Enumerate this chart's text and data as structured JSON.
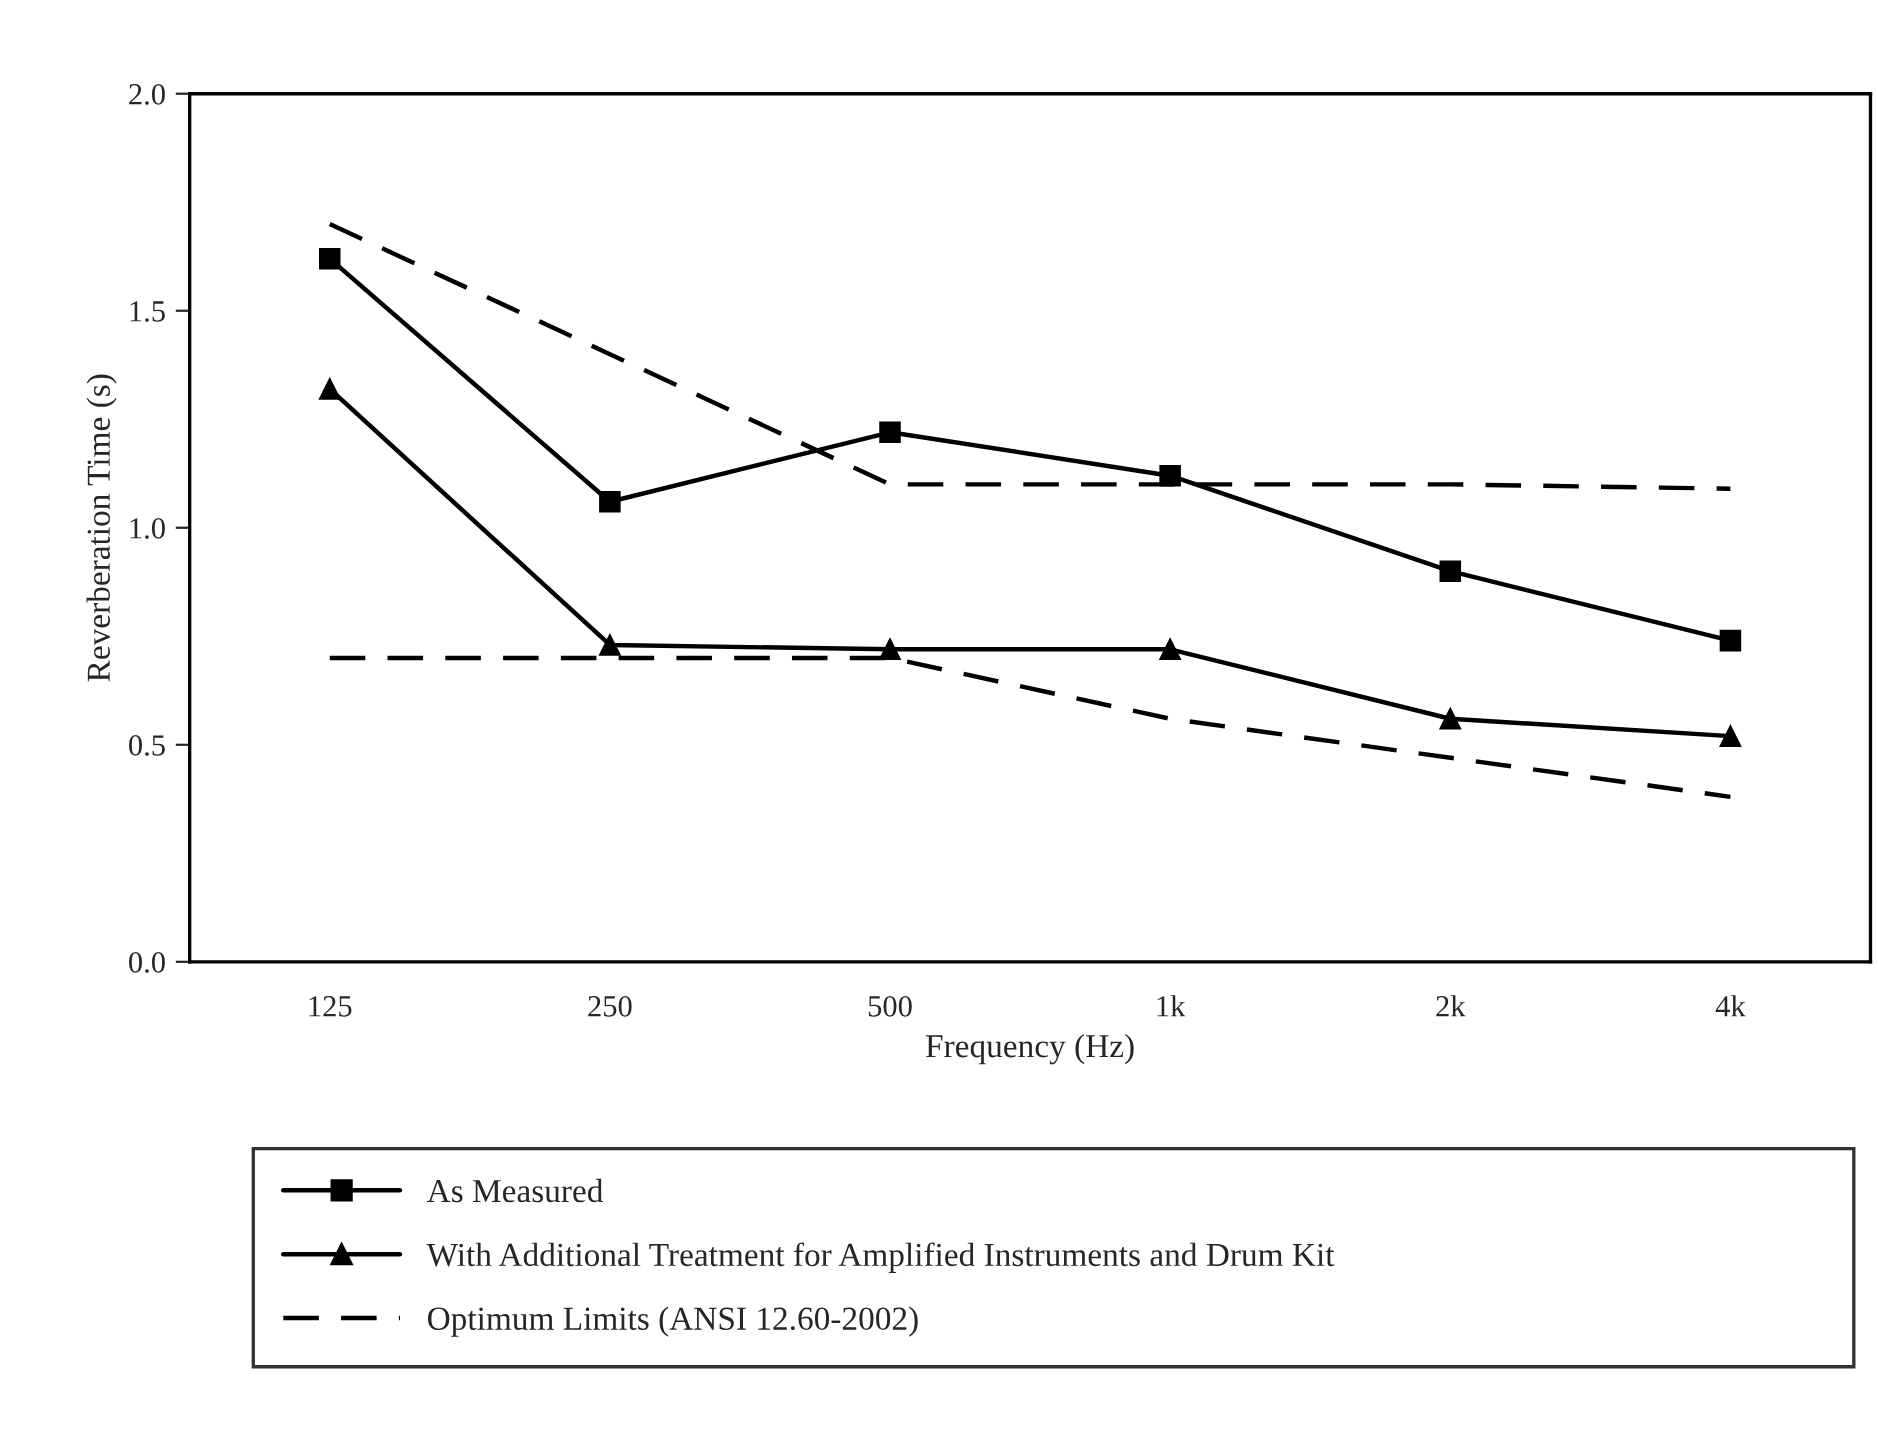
{
  "chart_data": {
    "type": "line",
    "xlabel": "Frequency (Hz)",
    "ylabel": "Reverberation Time (s)",
    "categories": [
      "125",
      "250",
      "500",
      "1k",
      "2k",
      "4k"
    ],
    "ylim": [
      0,
      2.0
    ],
    "yticks": [
      {
        "value": 0,
        "label": "0.0"
      },
      {
        "value": 0.5,
        "label": "0.5"
      },
      {
        "value": 1.0,
        "label": "1.0"
      },
      {
        "value": 1.5,
        "label": "1.5"
      },
      {
        "value": 2.0,
        "label": "2.0"
      }
    ],
    "grid": false,
    "legend": "bottom",
    "series": [
      {
        "name": "As Measured",
        "color": "#000000",
        "marker": "square",
        "line_style": "solid",
        "values": [
          1.62,
          1.06,
          1.22,
          1.12,
          0.9,
          0.74
        ]
      },
      {
        "name": "With Additional Treatment for Amplified Instruments and Drum Kit",
        "color": "#000000",
        "marker": "triangle",
        "line_style": "solid",
        "values": [
          1.32,
          0.73,
          0.72,
          0.72,
          0.56,
          0.52
        ]
      },
      {
        "name": "Optimum Limits (ANSI 12.60-2002)",
        "color": "#000000",
        "marker": "none",
        "line_style": "dashed",
        "values": [
          1.7,
          1.4,
          1.1,
          1.1,
          1.1,
          1.09
        ]
      },
      {
        "color": "#000000",
        "marker": "none",
        "line_style": "dashed",
        "values": [
          0.7,
          0.7,
          0.7,
          0.56,
          0.47,
          0.38
        ]
      }
    ]
  }
}
